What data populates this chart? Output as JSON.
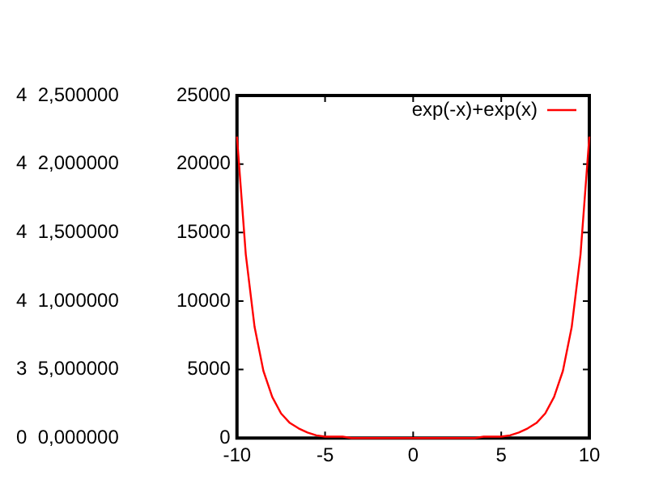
{
  "chart_data": {
    "type": "line",
    "x": [
      -10,
      -9.5,
      -9,
      -8.5,
      -8,
      -7.5,
      -7,
      -6.5,
      -6,
      -5.5,
      -5,
      -4.5,
      -4,
      -3.5,
      -3,
      -2.5,
      -2,
      -1.5,
      -1,
      -0.5,
      0,
      0.5,
      1,
      1.5,
      2,
      2.5,
      3,
      3.5,
      4,
      4.5,
      5,
      5.5,
      6,
      6.5,
      7,
      7.5,
      8,
      8.5,
      9,
      9.5,
      10
    ],
    "series": [
      {
        "name": "exp(-x)+exp(x)",
        "color": "#ff0000",
        "values": [
          22000,
          13400,
          8100,
          4900,
          3000,
          1800,
          1100,
          700,
          400,
          200,
          100,
          100,
          100,
          0,
          0,
          0,
          0,
          0,
          0,
          0,
          0,
          0,
          0,
          0,
          0,
          0,
          0,
          0,
          100,
          100,
          100,
          200,
          400,
          700,
          1100,
          1800,
          3000,
          4900,
          8100,
          13400,
          22000
        ]
      }
    ],
    "xlim": [
      -10,
      10
    ],
    "xticks": [
      -10,
      -5,
      0,
      5,
      10
    ],
    "ylim": [
      0,
      25000
    ],
    "yticks": [
      0,
      5000,
      10000,
      15000,
      20000,
      25000
    ],
    "annotations": [
      "0  0,000000",
      "3  5,000000",
      "4  1,000000",
      "4  1,500000",
      "4  2,000000",
      "4  2,500000"
    ],
    "grid": false,
    "legend": "top right",
    "marker": "none",
    "line_style": "solid"
  }
}
